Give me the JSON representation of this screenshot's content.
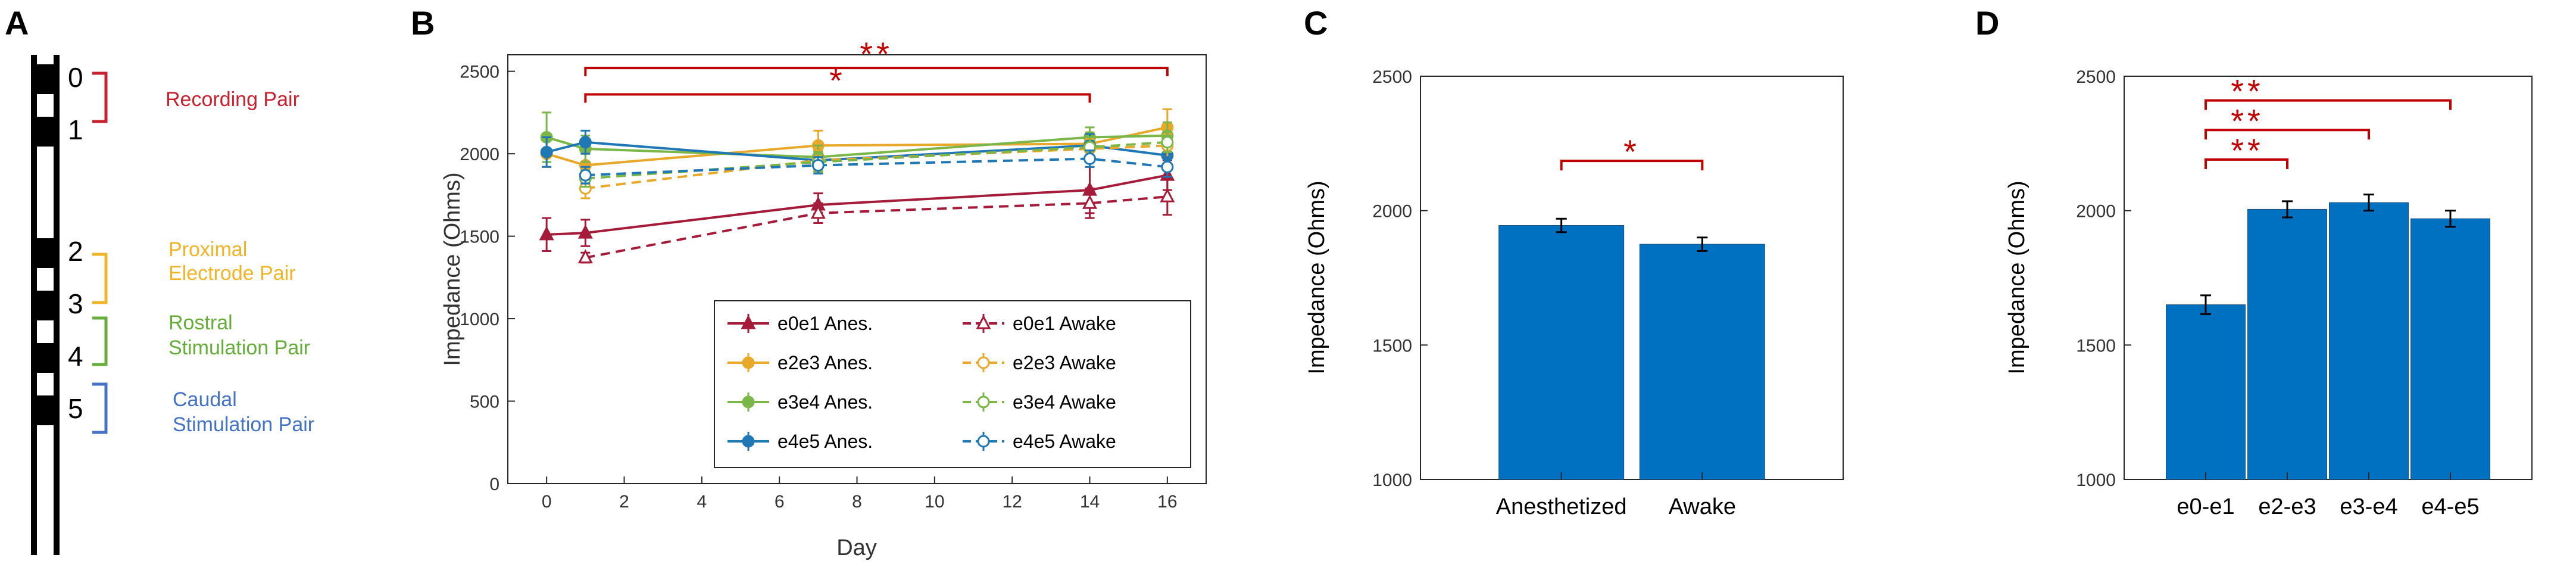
{
  "panels": {
    "A": {
      "letter": "A",
      "electrodes": [
        "0",
        "1",
        "2",
        "3",
        "4",
        "5"
      ],
      "pair_labels": [
        {
          "lines": [
            "Recording Pair"
          ],
          "color": "#c8202e"
        },
        {
          "lines": [
            "Proximal",
            "Electrode Pair"
          ],
          "color": "#f0b429"
        },
        {
          "lines": [
            "Rostral",
            "Stimulation Pair"
          ],
          "color": "#66ad3c"
        },
        {
          "lines": [
            "Caudal",
            "Stimulation Pair"
          ],
          "color": "#4472c4"
        }
      ]
    },
    "B": {
      "letter": "B"
    },
    "C": {
      "letter": "C"
    },
    "D": {
      "letter": "D"
    }
  },
  "chart_data": [
    {
      "panel": "B",
      "type": "line",
      "xlabel": "Day",
      "ylabel": "Impedance (Ohms)",
      "xlim": [
        -1,
        17
      ],
      "ylim": [
        0,
        2600
      ],
      "xticks": [
        "0",
        "2",
        "4",
        "6",
        "8",
        "10",
        "12",
        "14",
        "16"
      ],
      "yticks": [
        "0",
        "500",
        "1000",
        "1500",
        "2000",
        "2500"
      ],
      "series": [
        {
          "name": "e0e1 Anes.",
          "color": "#a51c3a",
          "dashed": false,
          "marker": "tri-filled",
          "x": [
            0,
            1,
            7,
            14,
            16
          ],
          "y": [
            1510,
            1520,
            1690,
            1780,
            1870
          ],
          "err": [
            100,
            80,
            70,
            140,
            90
          ]
        },
        {
          "name": "e2e3 Anes.",
          "color": "#e8a82a",
          "dashed": false,
          "marker": "dot-filled",
          "x": [
            0,
            1,
            7,
            14,
            16
          ],
          "y": [
            2000,
            1930,
            2050,
            2060,
            2160
          ],
          "err": [
            80,
            70,
            90,
            70,
            110
          ]
        },
        {
          "name": "e3e4 Anes.",
          "color": "#7ab648",
          "dashed": false,
          "marker": "dot-filled",
          "x": [
            0,
            1,
            7,
            14,
            16
          ],
          "y": [
            2100,
            2030,
            1980,
            2100,
            2110
          ],
          "err": [
            150,
            80,
            70,
            60,
            80
          ]
        },
        {
          "name": "e4e5 Anes.",
          "color": "#1f77b4",
          "dashed": false,
          "marker": "dot-filled",
          "x": [
            0,
            1,
            7,
            14,
            16
          ],
          "y": [
            2010,
            2070,
            1960,
            2050,
            1990
          ],
          "err": [
            90,
            70,
            60,
            70,
            70
          ]
        },
        {
          "name": "e0e1 Awake",
          "color": "#a51c3a",
          "dashed": true,
          "marker": "tri-open",
          "x": [
            1,
            7,
            14,
            16
          ],
          "y": [
            1370,
            1640,
            1700,
            1740
          ],
          "err": [
            30,
            60,
            90,
            110
          ]
        },
        {
          "name": "e2e3 Awake",
          "color": "#e8a82a",
          "dashed": true,
          "marker": "dot-open",
          "x": [
            1,
            7,
            14,
            16
          ],
          "y": [
            1790,
            1960,
            2030,
            2050
          ],
          "err": [
            60,
            60,
            60,
            70
          ]
        },
        {
          "name": "e3e4 Awake",
          "color": "#7ab648",
          "dashed": true,
          "marker": "dot-open",
          "x": [
            1,
            7,
            14,
            16
          ],
          "y": [
            1850,
            1950,
            2040,
            2070
          ],
          "err": [
            50,
            60,
            60,
            60
          ]
        },
        {
          "name": "e4e5 Awake",
          "color": "#1f77b4",
          "dashed": true,
          "marker": "dot-open",
          "x": [
            1,
            7,
            14,
            16
          ],
          "y": [
            1870,
            1930,
            1970,
            1920
          ],
          "err": [
            50,
            50,
            50,
            60
          ]
        }
      ],
      "annotations": [
        {
          "label": "*",
          "x_from": 1,
          "x_to": 14,
          "y": 2360
        },
        {
          "label": "**",
          "x_from": 1,
          "x_to": 16,
          "y": 2520
        }
      ],
      "legend_position": "bottom-right"
    },
    {
      "panel": "C",
      "type": "bar",
      "ylabel": "Impedance (Ohms)",
      "categories": [
        "Anesthetized",
        "Awake"
      ],
      "values": [
        1945,
        1875
      ],
      "err": [
        25,
        25
      ],
      "ylim": [
        1000,
        2500
      ],
      "yticks": [
        "1000",
        "1500",
        "2000",
        "2500"
      ],
      "bar_color": "#0070c0",
      "annotations": [
        {
          "label": "*",
          "from": 0,
          "to": 1,
          "y": 2185
        }
      ]
    },
    {
      "panel": "D",
      "type": "bar",
      "ylabel": "Impedance (Ohms)",
      "categories": [
        "e0-e1",
        "e2-e3",
        "e3-e4",
        "e4-e5"
      ],
      "values": [
        1650,
        2005,
        2030,
        1970
      ],
      "err": [
        35,
        30,
        30,
        30
      ],
      "ylim": [
        1000,
        2500
      ],
      "yticks": [
        "1000",
        "1500",
        "2000",
        "2500"
      ],
      "bar_color": "#0070c0",
      "annotations": [
        {
          "label": "**",
          "from": 0,
          "to": 1,
          "y": 2190
        },
        {
          "label": "**",
          "from": 0,
          "to": 2,
          "y": 2300
        },
        {
          "label": "**",
          "from": 0,
          "to": 3,
          "y": 2410
        }
      ]
    }
  ]
}
